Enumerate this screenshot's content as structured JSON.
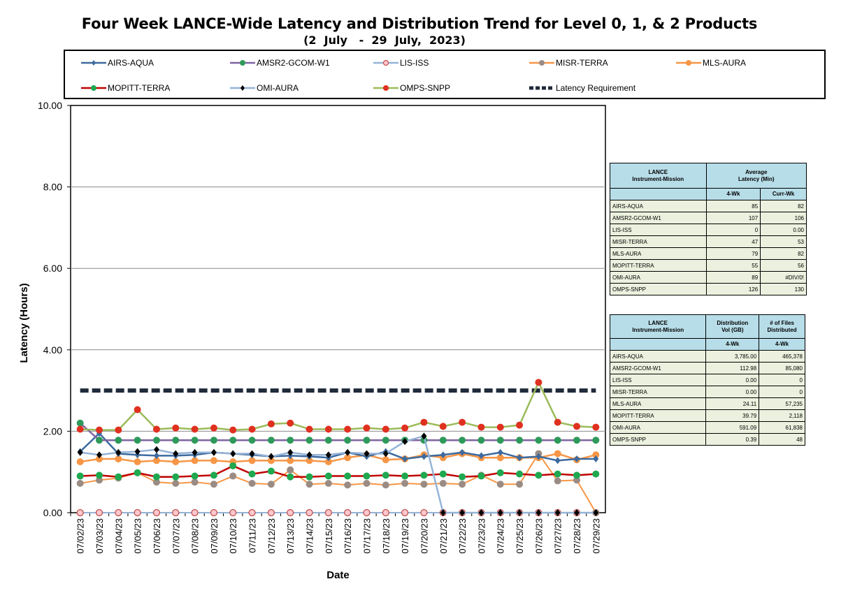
{
  "title": "Four Week LANCE-Wide Latency and Distribution Trend for Level 0, 1, & 2 Products",
  "subtitle": "(2  July   -  29  July,  2023)",
  "chart_data": {
    "type": "line",
    "xlabel": "Date",
    "ylabel": "Latency (Hours)",
    "ylim": [
      0,
      10
    ],
    "yticks": [
      "0.00",
      "2.00",
      "4.00",
      "6.00",
      "8.00",
      "10.00"
    ],
    "grid": true,
    "legend_position": "top",
    "categories": [
      "07/02/23",
      "07/03/23",
      "07/04/23",
      "07/05/23",
      "07/06/23",
      "07/07/23",
      "07/08/23",
      "07/09/23",
      "07/10/23",
      "07/11/23",
      "07/12/23",
      "07/13/23",
      "07/14/23",
      "07/15/23",
      "07/16/23",
      "07/17/23",
      "07/18/23",
      "07/19/23",
      "07/20/23",
      "07/21/23",
      "07/22/23",
      "07/23/23",
      "07/24/23",
      "07/25/23",
      "07/26/23",
      "07/27/23",
      "07/28/23",
      "07/29/23"
    ],
    "series": [
      {
        "name": "AIRS-AQUA",
        "color": "#3d6a9e",
        "line_width": 2.5,
        "marker": "diamond",
        "marker_color": "#3d6a9e",
        "values": [
          1.5,
          1.95,
          1.45,
          1.42,
          1.4,
          1.4,
          1.42,
          1.48,
          1.45,
          1.42,
          1.38,
          1.4,
          1.38,
          1.35,
          1.48,
          1.38,
          1.5,
          1.32,
          1.38,
          1.42,
          1.48,
          1.4,
          1.48,
          1.35,
          1.38,
          1.28,
          1.32,
          1.32
        ]
      },
      {
        "name": "AMSR2-GCOM-W1",
        "color": "#8064a2",
        "line_width": 2.5,
        "marker": "circle",
        "marker_color": "#2e9a5a",
        "values": [
          2.2,
          1.78,
          1.78,
          1.78,
          1.78,
          1.78,
          1.78,
          1.78,
          1.78,
          1.78,
          1.78,
          1.78,
          1.78,
          1.78,
          1.78,
          1.78,
          1.78,
          1.78,
          1.78,
          1.78,
          1.78,
          1.78,
          1.78,
          1.78,
          1.78,
          1.78,
          1.78,
          1.78
        ]
      },
      {
        "name": "LIS-ISS",
        "color": "#95b3d7",
        "line_width": 2,
        "marker": "ring",
        "marker_color": "#ffc7ce",
        "marker_stroke": "#c0504d",
        "values": [
          0,
          0,
          0,
          0,
          0,
          0,
          0,
          0,
          0,
          0,
          0,
          0,
          0,
          0,
          0,
          0,
          0,
          0,
          0,
          0,
          0,
          0,
          0,
          0,
          0,
          0,
          0,
          0
        ]
      },
      {
        "name": "MISR-TERRA",
        "color": "#f79646",
        "line_width": 2,
        "marker": "circle",
        "marker_color": "#9a8c84",
        "values": [
          0.72,
          0.8,
          0.85,
          0.98,
          0.75,
          0.72,
          0.75,
          0.7,
          0.9,
          0.72,
          0.7,
          1.05,
          0.7,
          0.72,
          0.68,
          0.72,
          0.68,
          0.72,
          0.7,
          0.72,
          0.7,
          0.92,
          0.7,
          0.7,
          1.45,
          0.78,
          0.8,
          0.0
        ]
      },
      {
        "name": "MLS-AURA",
        "color": "#f79646",
        "line_width": 2.5,
        "marker": "circle",
        "marker_color": "#f79646",
        "values": [
          1.25,
          1.32,
          1.32,
          1.25,
          1.28,
          1.25,
          1.28,
          1.28,
          1.25,
          1.28,
          1.28,
          1.28,
          1.28,
          1.25,
          1.35,
          1.42,
          1.3,
          1.32,
          1.42,
          1.35,
          1.45,
          1.35,
          1.35,
          1.35,
          1.35,
          1.45,
          1.3,
          1.42
        ]
      },
      {
        "name": "MOPITT-TERRA",
        "color": "#c00000",
        "line_width": 2.5,
        "marker": "circle",
        "marker_color": "#1fa84f",
        "values": [
          0.9,
          0.92,
          0.88,
          0.98,
          0.88,
          0.88,
          0.9,
          0.92,
          1.15,
          0.95,
          1.02,
          0.88,
          0.88,
          0.9,
          0.9,
          0.9,
          0.92,
          0.9,
          0.92,
          0.95,
          0.88,
          0.9,
          0.98,
          0.95,
          0.92,
          0.95,
          0.92,
          0.95
        ]
      },
      {
        "name": "OMI-AURA",
        "color": "#95b3d7",
        "line_width": 2.5,
        "marker": "diamond",
        "marker_color": "#000000",
        "values": [
          1.48,
          1.42,
          1.48,
          1.5,
          1.55,
          1.45,
          1.48,
          1.48,
          1.45,
          1.45,
          1.38,
          1.48,
          1.42,
          1.42,
          1.48,
          1.45,
          1.45,
          1.75,
          1.88,
          0,
          0,
          0,
          0,
          0,
          0,
          0,
          0,
          0
        ]
      },
      {
        "name": "OMPS-SNPP",
        "color": "#9bbb59",
        "line_width": 2.5,
        "marker": "circle",
        "marker_color": "#e03020",
        "values": [
          2.05,
          2.03,
          2.03,
          2.53,
          2.05,
          2.08,
          2.05,
          2.08,
          2.03,
          2.05,
          2.18,
          2.2,
          2.05,
          2.05,
          2.05,
          2.08,
          2.05,
          2.08,
          2.22,
          2.12,
          2.22,
          2.1,
          2.1,
          2.15,
          3.2,
          2.22,
          2.12,
          2.1
        ]
      },
      {
        "name": "Latency Requirement",
        "color": "#1f2a3a",
        "line_width": 6,
        "dashed": true,
        "marker": "none",
        "values": [
          3.0,
          3.0,
          3.0,
          3.0,
          3.0,
          3.0,
          3.0,
          3.0,
          3.0,
          3.0,
          3.0,
          3.0,
          3.0,
          3.0,
          3.0,
          3.0,
          3.0,
          3.0,
          3.0,
          3.0,
          3.0,
          3.0,
          3.0,
          3.0,
          3.0,
          3.0,
          3.0,
          3.0
        ]
      }
    ]
  },
  "latency_table": {
    "header_col1": [
      "LANCE",
      "Instrument-Mission"
    ],
    "header_col2": [
      "Average",
      "Latency (Min)"
    ],
    "sub_headers": [
      "4-Wk",
      "Curr-Wk"
    ],
    "rows": [
      {
        "name": "AIRS-AQUA",
        "v1": "85",
        "v2": "82"
      },
      {
        "name": "AMSR2-GCOM-W1",
        "v1": "107",
        "v2": "106"
      },
      {
        "name": "LIS-ISS",
        "v1": "0",
        "v2": "0.00"
      },
      {
        "name": "MISR-TERRA",
        "v1": "47",
        "v2": "53"
      },
      {
        "name": "MLS-AURA",
        "v1": "79",
        "v2": "82"
      },
      {
        "name": "MOPITT-TERRA",
        "v1": "55",
        "v2": "56"
      },
      {
        "name": "OMI-AURA",
        "v1": "89",
        "v2": "#DIV/0!"
      },
      {
        "name": "OMPS-SNPP",
        "v1": "126",
        "v2": "130"
      }
    ]
  },
  "distribution_table": {
    "header_col1": [
      "LANCE",
      "Instrument-Mission"
    ],
    "header_col2": [
      "Distribution",
      "Vol (GB)"
    ],
    "header_col3": [
      "# of Files",
      "Distributed"
    ],
    "sub_headers": [
      "4-Wk",
      "4-Wk"
    ],
    "rows": [
      {
        "name": "AIRS-AQUA",
        "v1": "3,785.00",
        "v2": "465,378"
      },
      {
        "name": "AMSR2-GCOM-W1",
        "v1": "112.98",
        "v2": "85,080"
      },
      {
        "name": "LIS-ISS",
        "v1": "0.00",
        "v2": "0"
      },
      {
        "name": "MISR-TERRA",
        "v1": "0.00",
        "v2": "0"
      },
      {
        "name": "MLS-AURA",
        "v1": "24.11",
        "v2": "57,235"
      },
      {
        "name": "MOPITT-TERRA",
        "v1": "39.79",
        "v2": "2,118"
      },
      {
        "name": "OMI-AURA",
        "v1": "591.09",
        "v2": "61,838"
      },
      {
        "name": "OMPS-SNPP",
        "v1": "0.39",
        "v2": "48"
      }
    ]
  }
}
